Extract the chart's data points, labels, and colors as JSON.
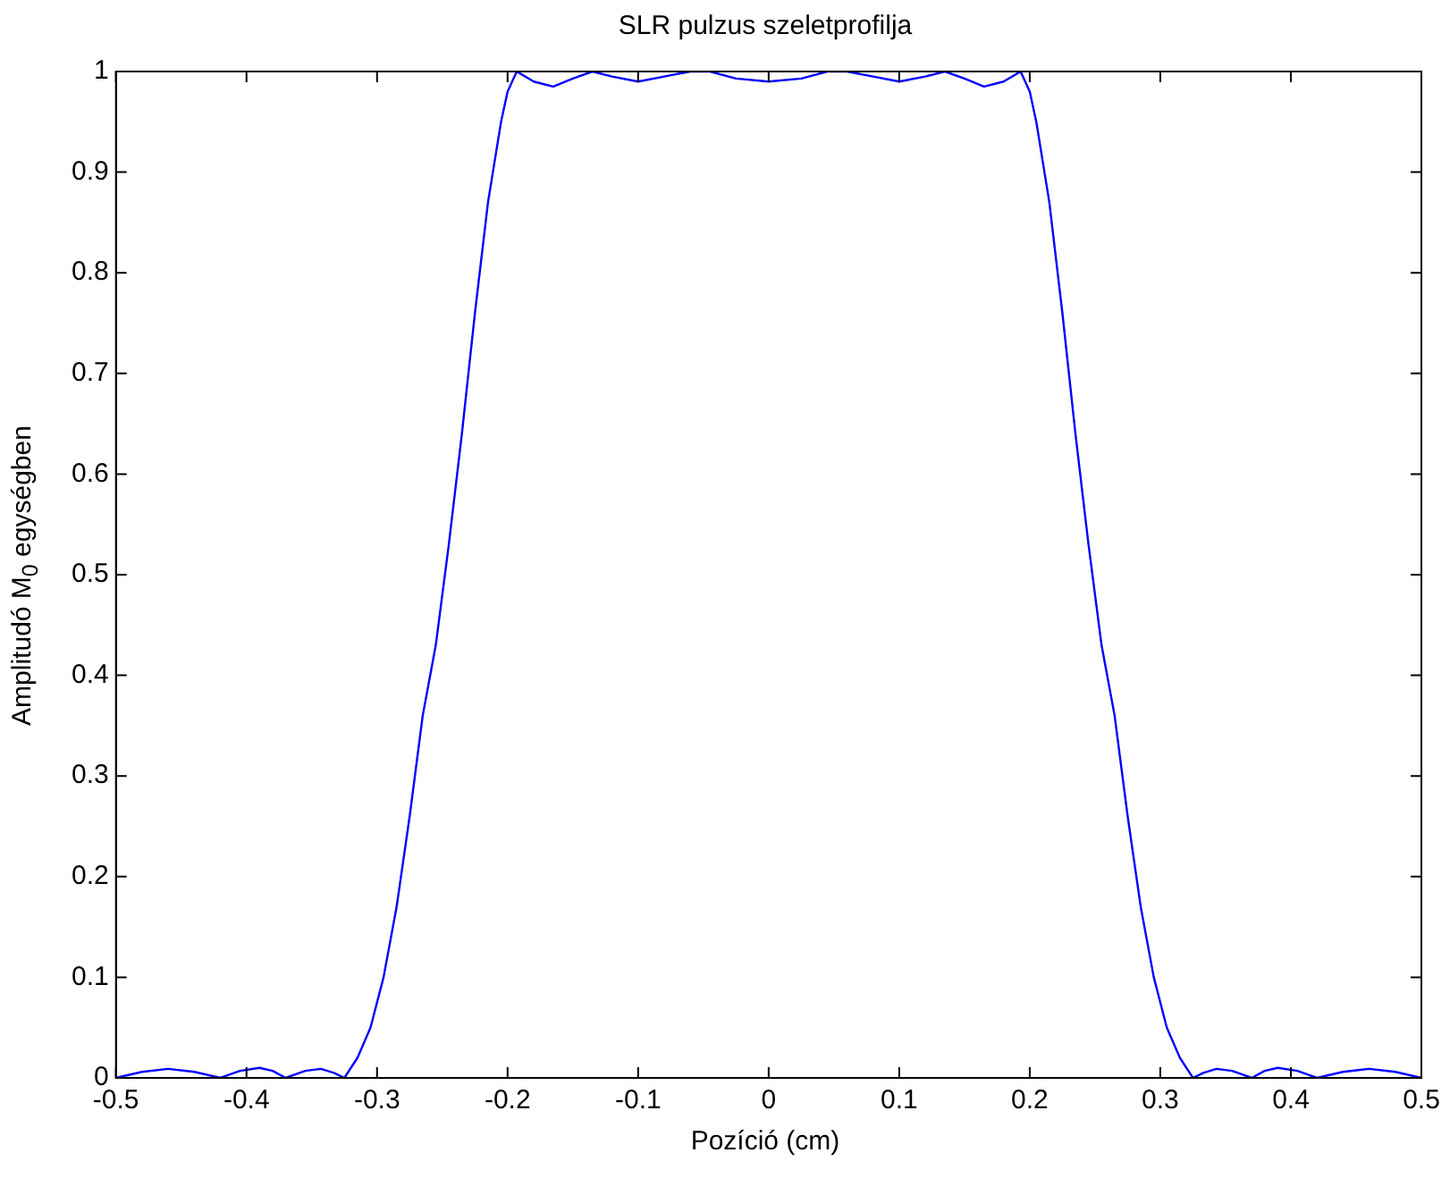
{
  "chart_data": {
    "type": "line",
    "title": "SLR pulzus szeletprofilja",
    "xlabel": "Pozíció (cm)",
    "ylabel": "Amplitudó M$_{0}$ egységben",
    "x": [
      -0.5,
      -0.48,
      -0.46,
      -0.44,
      -0.42,
      -0.405,
      -0.39,
      -0.38,
      -0.37,
      -0.355,
      -0.343,
      -0.333,
      -0.325,
      -0.315,
      -0.305,
      -0.295,
      -0.285,
      -0.275,
      -0.265,
      -0.255,
      -0.245,
      -0.235,
      -0.225,
      -0.215,
      -0.205,
      -0.2,
      -0.193,
      -0.18,
      -0.165,
      -0.15,
      -0.135,
      -0.12,
      -0.1,
      -0.08,
      -0.06,
      -0.045,
      -0.025,
      0,
      0.025,
      0.045,
      0.06,
      0.08,
      0.1,
      0.12,
      0.135,
      0.15,
      0.165,
      0.18,
      0.193,
      0.2,
      0.205,
      0.215,
      0.225,
      0.235,
      0.245,
      0.255,
      0.265,
      0.275,
      0.285,
      0.295,
      0.305,
      0.315,
      0.325,
      0.333,
      0.343,
      0.355,
      0.37,
      0.38,
      0.39,
      0.405,
      0.42,
      0.44,
      0.46,
      0.48,
      0.5
    ],
    "series": [
      {
        "color": "#0000ff",
        "values": [
          0,
          0.006,
          0.009,
          0.006,
          0,
          0.007,
          0.01,
          0.007,
          0,
          0.007,
          0.009,
          0.005,
          0,
          0.02,
          0.05,
          0.1,
          0.17,
          0.26,
          0.36,
          0.43,
          0.53,
          0.64,
          0.76,
          0.87,
          0.95,
          0.98,
          1,
          0.99,
          0.985,
          0.993,
          1,
          0.995,
          0.99,
          0.995,
          1,
          1,
          0.993,
          0.99,
          0.993,
          1,
          1,
          0.995,
          0.99,
          0.995,
          1,
          0.993,
          0.985,
          0.99,
          1,
          0.98,
          0.95,
          0.87,
          0.76,
          0.64,
          0.53,
          0.43,
          0.36,
          0.26,
          0.17,
          0.1,
          0.05,
          0.02,
          0,
          0.005,
          0.009,
          0.007,
          0,
          0.007,
          0.01,
          0.007,
          0,
          0.006,
          0.009,
          0.006,
          0
        ]
      }
    ],
    "xlim": [
      -0.5,
      0.5
    ],
    "xticks": [
      -0.5,
      -0.4,
      -0.3,
      -0.2,
      -0.1,
      0,
      0.1,
      0.2,
      0.3,
      0.4,
      0.5
    ],
    "ylim": [
      0,
      1
    ],
    "yticks": [
      0,
      0.1,
      0.2,
      0.3,
      0.4,
      0.5,
      0.6,
      0.7,
      0.8,
      0.9,
      1
    ],
    "grid": false,
    "legend": false,
    "marker": "none",
    "line_style": "solid"
  }
}
